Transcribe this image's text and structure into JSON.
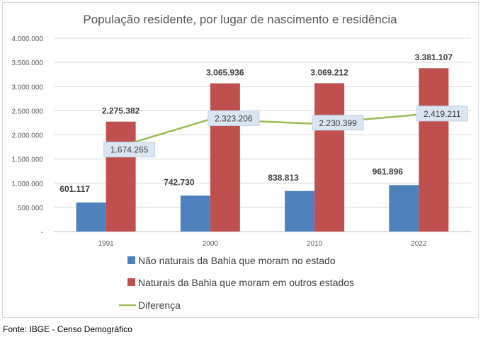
{
  "chart_data": {
    "type": "bar",
    "title": "População residente, por lugar de nascimento e residência",
    "categories": [
      "1991",
      "2000",
      "2010",
      "2022"
    ],
    "ylim": [
      0,
      4000000
    ],
    "y_ticks": [
      0,
      500000,
      1000000,
      1500000,
      2000000,
      2500000,
      3000000,
      3500000,
      4000000
    ],
    "y_tick_labels": [
      "-",
      "500.000",
      "1.000.000",
      "1.500.000",
      "2.000.000",
      "2.500.000",
      "3.000.000",
      "3.500.000",
      "4.000.000"
    ],
    "xlabel": "",
    "ylabel": "",
    "grid": true,
    "legend_position": "bottom",
    "series": [
      {
        "name": "Não naturais da Bahia que moram no estado",
        "kind": "bar",
        "color": "#4f81bd",
        "values": [
          601117,
          742730,
          838813,
          961896
        ],
        "labels": [
          "601.117",
          "742.730",
          "838.813",
          "961.896"
        ]
      },
      {
        "name": "Naturais da Bahia que moram em outros estados",
        "kind": "bar",
        "color": "#c0504d",
        "values": [
          2275382,
          3065936,
          3069212,
          3381107
        ],
        "labels": [
          "2.275.382",
          "3.065.936",
          "3.069.212",
          "3.381.107"
        ]
      },
      {
        "name": "Diferença",
        "kind": "line",
        "color": "#9bbb59",
        "values": [
          1674265,
          2323206,
          2230399,
          2419211
        ],
        "labels": [
          "1.674.265",
          "2.323.206",
          "2.230.399",
          "2.419.211"
        ]
      }
    ]
  },
  "footer": {
    "source": "Fonte: IBGE - Censo Demográfico"
  }
}
